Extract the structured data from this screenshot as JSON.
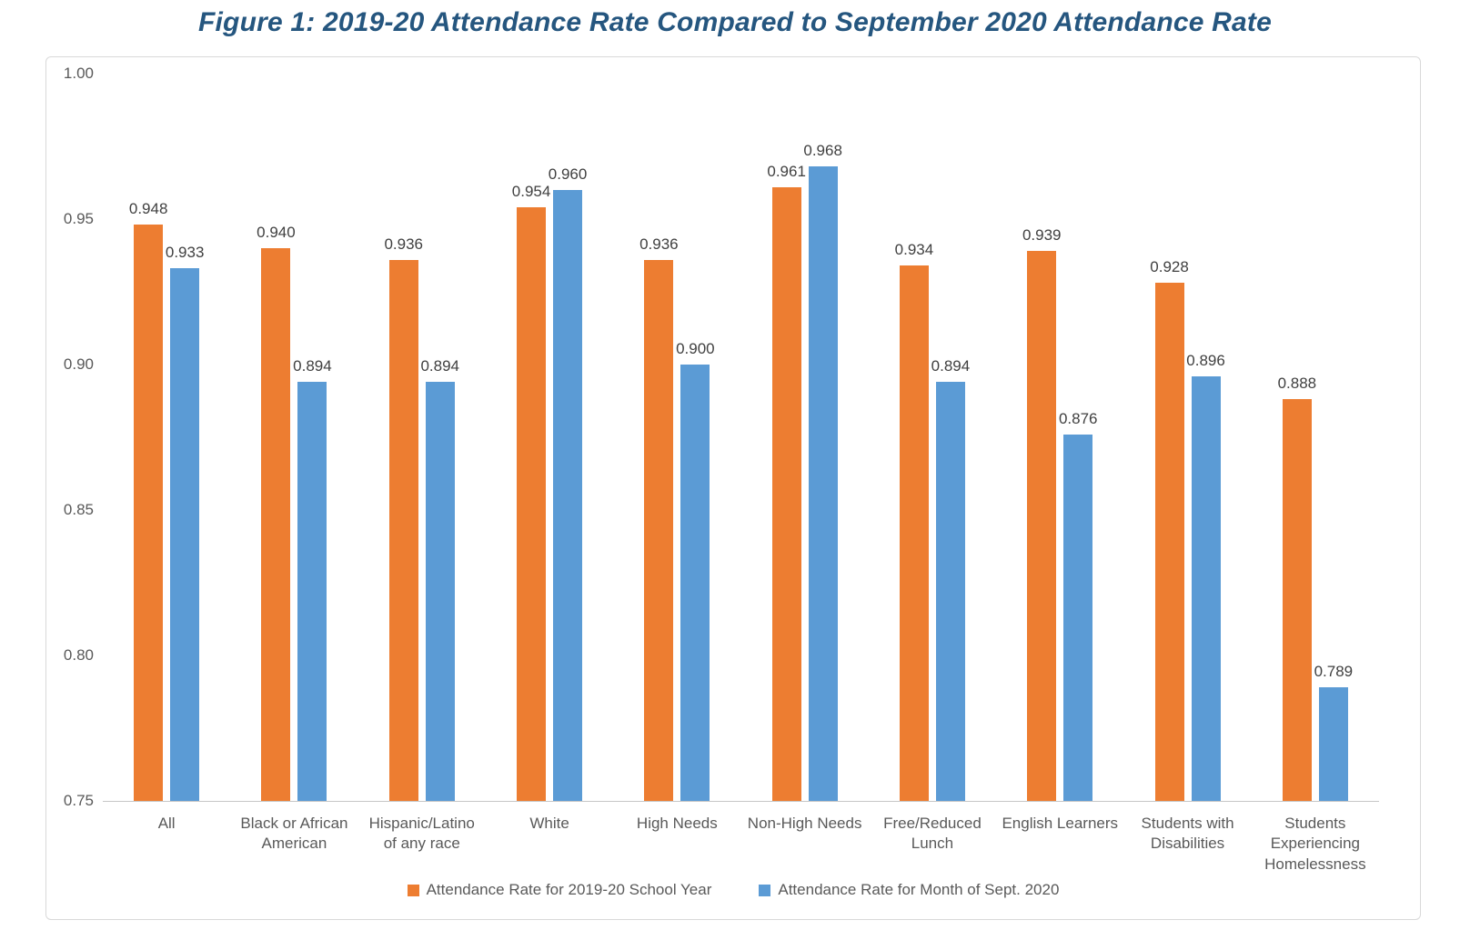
{
  "chart_data": {
    "type": "bar",
    "title": "Figure 1: 2019-20 Attendance Rate Compared to September 2020 Attendance Rate",
    "title_color": "#25567F",
    "categories": [
      "All",
      "Black or African American",
      "Hispanic/Latino of any race",
      "White",
      "High Needs",
      "Non-High Needs",
      "Free/Reduced Lunch",
      "English Learners",
      "Students with Disabilities",
      "Students Experiencing Homelessness"
    ],
    "tick_labels": [
      "All",
      "Black or African\nAmerican",
      "Hispanic/Latino\nof any race",
      "White",
      "High Needs",
      "Non-High Needs",
      "Free/Reduced\nLunch",
      "English Learners",
      "Students with\nDisabilities",
      "Students\nExperiencing\nHomelessness"
    ],
    "series": [
      {
        "name": "Attendance Rate for 2019-20 School Year",
        "color": "#ED7D31",
        "values": [
          0.948,
          0.94,
          0.936,
          0.954,
          0.936,
          0.961,
          0.934,
          0.939,
          0.928,
          0.888
        ]
      },
      {
        "name": "Attendance Rate for Month of Sept. 2020",
        "color": "#5B9BD5",
        "values": [
          0.933,
          0.894,
          0.894,
          0.96,
          0.9,
          0.968,
          0.894,
          0.876,
          0.896,
          0.789
        ]
      }
    ],
    "ylim": [
      0.75,
      1.0
    ],
    "ytick_step": 0.05,
    "ytick_labels": [
      "0.75",
      "0.80",
      "0.85",
      "0.90",
      "0.95",
      "1.00"
    ],
    "grid": false,
    "legend_position": "bottom",
    "value_labels": true,
    "axis_color": "#C6C6C6",
    "tick_text_color": "#595959",
    "value_label_color": "#404040"
  }
}
